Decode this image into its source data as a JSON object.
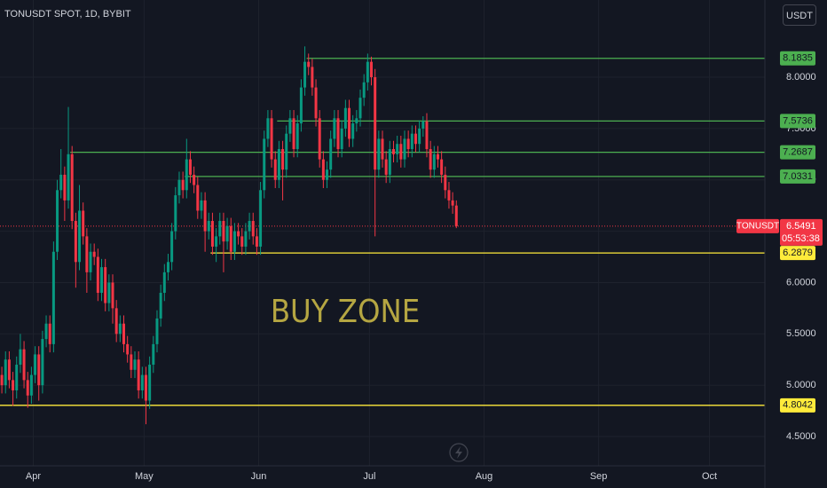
{
  "chart_data": {
    "type": "candlestick",
    "title": "TONUSDT SPOT, 1D, BYBIT",
    "currency_button": "USDT",
    "annotation": "BUY ZONE",
    "up_color": "#089981",
    "down_color": "#f23645",
    "grid": true,
    "xlim": [
      0,
      207
    ],
    "xticks": [
      {
        "value": 9,
        "label": "Apr"
      },
      {
        "value": 39,
        "label": "May"
      },
      {
        "value": 70,
        "label": "Jun"
      },
      {
        "value": 100,
        "label": "Jul"
      },
      {
        "value": 131,
        "label": "Aug"
      },
      {
        "value": 162,
        "label": "Sep"
      },
      {
        "value": 192,
        "label": "Oct"
      }
    ],
    "ylim": [
      4.215,
      8.752
    ],
    "yticks": [
      {
        "value": 4.5,
        "label": "4.5000"
      },
      {
        "value": 5,
        "label": "5.0000"
      },
      {
        "value": 5.5,
        "label": "5.5000"
      },
      {
        "value": 6,
        "label": "6.0000"
      },
      {
        "value": 6.5,
        "label": "6.5000"
      },
      {
        "value": 7,
        "label": "7.0000"
      },
      {
        "value": 7.5,
        "label": "7.5000"
      },
      {
        "value": 8,
        "label": "8.0000"
      }
    ],
    "open": [
      5.1,
      5.0,
      5.25,
      5.05,
      4.95,
      5.2,
      5.35,
      5.05,
      4.9,
      5.1,
      5.3,
      5.0,
      5.45,
      5.6,
      5.4,
      6.3,
      6.9,
      7.05,
      6.8,
      7.25,
      6.6,
      6.2,
      6.7,
      6.45,
      6.1,
      6.3,
      6.25,
      5.9,
      6.15,
      5.8,
      6.0,
      5.75,
      5.5,
      5.6,
      5.4,
      5.3,
      5.15,
      5.25,
      4.95,
      5.1,
      4.85,
      5.2,
      5.4,
      5.65,
      5.9,
      6.1,
      6.2,
      6.5,
      6.85,
      7.0,
      6.9,
      7.2,
      7.05,
      6.95,
      6.7,
      6.8,
      6.5,
      6.6,
      6.35,
      6.45,
      6.6,
      6.4,
      6.55,
      6.3,
      6.5,
      6.45,
      6.35,
      6.5,
      6.6,
      6.45,
      6.35,
      6.9,
      7.4,
      7.6,
      7.2,
      7.0,
      7.3,
      7.1,
      7.45,
      7.6,
      7.3,
      7.55,
      7.9,
      8.15,
      8.1,
      7.9,
      7.6,
      7.2,
      7.0,
      7.1,
      7.4,
      7.6,
      7.3,
      7.5,
      7.7,
      7.4,
      7.55,
      7.6,
      7.8,
      7.95,
      8.15,
      8.0,
      7.1,
      7.4,
      7.2,
      7.05,
      7.3,
      7.25,
      7.35,
      7.2,
      7.4,
      7.3,
      7.45,
      7.35,
      7.5,
      7.57,
      7.3,
      7.1,
      7.25,
      7.2,
      7.05,
      6.9,
      6.8,
      6.75
    ],
    "high": [
      5.18,
      5.33,
      5.33,
      5.13,
      5.28,
      5.5,
      5.43,
      5.13,
      5.18,
      5.38,
      5.38,
      5.53,
      5.68,
      5.68,
      6.4,
      7.0,
      7.3,
      7.13,
      7.71,
      7.33,
      6.68,
      6.95,
      6.78,
      6.53,
      6.38,
      6.38,
      6.33,
      6.23,
      6.23,
      6.08,
      6.08,
      5.83,
      5.68,
      5.68,
      5.48,
      5.38,
      5.33,
      5.33,
      5.18,
      5.18,
      5.28,
      5.48,
      5.73,
      5.98,
      6.18,
      6.28,
      6.58,
      6.93,
      7.08,
      7.08,
      7.4,
      7.28,
      7.13,
      7.03,
      6.88,
      6.88,
      6.68,
      6.68,
      6.53,
      6.68,
      6.68,
      6.63,
      6.63,
      6.58,
      6.58,
      6.53,
      6.58,
      6.68,
      6.68,
      6.53,
      6.98,
      7.48,
      7.68,
      7.68,
      7.28,
      7.38,
      7.38,
      7.53,
      7.68,
      7.68,
      7.63,
      7.98,
      8.3,
      8.23,
      8.18,
      7.98,
      7.68,
      7.28,
      7.18,
      7.48,
      7.68,
      7.68,
      7.58,
      7.78,
      7.78,
      7.63,
      7.68,
      7.88,
      8.03,
      8.23,
      8.2,
      8.08,
      7.48,
      7.48,
      7.28,
      7.38,
      7.38,
      7.43,
      7.43,
      7.48,
      7.48,
      7.53,
      7.53,
      7.58,
      7.62,
      7.65,
      7.38,
      7.33,
      7.33,
      7.28,
      7.13,
      6.98,
      6.88,
      6.8
    ],
    "low": [
      4.92,
      4.92,
      4.97,
      4.8,
      4.87,
      5.12,
      4.97,
      4.78,
      4.82,
      5.02,
      4.85,
      4.92,
      5.37,
      5.32,
      5.32,
      6.22,
      6.82,
      6.6,
      6.72,
      6.52,
      5.95,
      6.12,
      6.37,
      5.9,
      6.02,
      6.17,
      5.82,
      5.82,
      5.72,
      5.72,
      5.6,
      5.42,
      5.42,
      5.32,
      5.22,
      5.07,
      5.07,
      4.87,
      4.87,
      4.62,
      4.77,
      5.12,
      5.32,
      5.57,
      5.82,
      6.02,
      6.12,
      6.42,
      6.77,
      6.82,
      6.82,
      6.97,
      6.87,
      6.62,
      6.62,
      6.3,
      6.42,
      6.27,
      6.2,
      6.37,
      6.1,
      6.32,
      6.22,
      6.22,
      6.37,
      6.27,
      6.27,
      6.42,
      6.37,
      6.27,
      6.27,
      6.82,
      7.32,
      7.12,
      6.92,
      6.92,
      6.8,
      7.02,
      7.37,
      7.22,
      7.22,
      7.47,
      7.82,
      8.02,
      7.82,
      7.52,
      7.12,
      6.92,
      6.92,
      7.02,
      7.32,
      7.22,
      7.22,
      7.42,
      7.32,
      7.32,
      7.47,
      7.52,
      7.72,
      7.87,
      7.92,
      6.45,
      7.02,
      7.12,
      6.97,
      6.97,
      7.17,
      7.17,
      7.12,
      7.12,
      7.22,
      7.22,
      7.27,
      7.27,
      7.42,
      7.22,
      7.02,
      7.02,
      7.12,
      6.97,
      6.82,
      6.72,
      6.67,
      6.53
    ],
    "close": [
      5.0,
      5.25,
      5.05,
      4.95,
      5.2,
      5.35,
      5.05,
      4.9,
      5.1,
      5.3,
      5.0,
      5.45,
      5.6,
      5.4,
      6.3,
      6.9,
      7.05,
      6.8,
      7.25,
      6.6,
      6.2,
      6.7,
      6.45,
      6.1,
      6.3,
      6.25,
      5.9,
      6.15,
      5.8,
      6.0,
      5.75,
      5.5,
      5.6,
      5.4,
      5.3,
      5.15,
      5.25,
      4.95,
      5.1,
      4.85,
      5.2,
      5.4,
      5.65,
      5.9,
      6.1,
      6.2,
      6.5,
      6.85,
      7.0,
      6.9,
      7.2,
      7.05,
      6.95,
      6.7,
      6.8,
      6.5,
      6.6,
      6.35,
      6.45,
      6.6,
      6.4,
      6.55,
      6.3,
      6.5,
      6.45,
      6.35,
      6.5,
      6.6,
      6.45,
      6.35,
      6.9,
      7.4,
      7.6,
      7.2,
      7.0,
      7.3,
      7.1,
      7.45,
      7.6,
      7.3,
      7.55,
      7.9,
      8.15,
      8.1,
      7.9,
      7.6,
      7.2,
      7.0,
      7.1,
      7.4,
      7.6,
      7.3,
      7.5,
      7.7,
      7.4,
      7.55,
      7.6,
      7.8,
      7.95,
      8.15,
      8.0,
      7.1,
      7.4,
      7.2,
      7.05,
      7.3,
      7.25,
      7.35,
      7.2,
      7.4,
      7.3,
      7.45,
      7.35,
      7.5,
      7.57,
      7.3,
      7.1,
      7.25,
      7.2,
      7.05,
      6.9,
      6.8,
      6.75,
      6.5491
    ],
    "levels": [
      {
        "value": 8.1835,
        "start": 83,
        "color": "#4caf50"
      },
      {
        "value": 7.5736,
        "start": 75,
        "color": "#4caf50"
      },
      {
        "value": 7.2687,
        "start": 19,
        "color": "#4caf50"
      },
      {
        "value": 7.0331,
        "start": 50,
        "color": "#4caf50"
      },
      {
        "value": 6.2879,
        "start": 57,
        "color": "#ffeb3b"
      },
      {
        "value": 4.8042,
        "start": 0,
        "color": "#ffeb3b"
      }
    ],
    "last_price": {
      "name": "TONUSDT",
      "value": 6.5491,
      "countdown": "05:53:38",
      "color": "#f23645"
    }
  }
}
